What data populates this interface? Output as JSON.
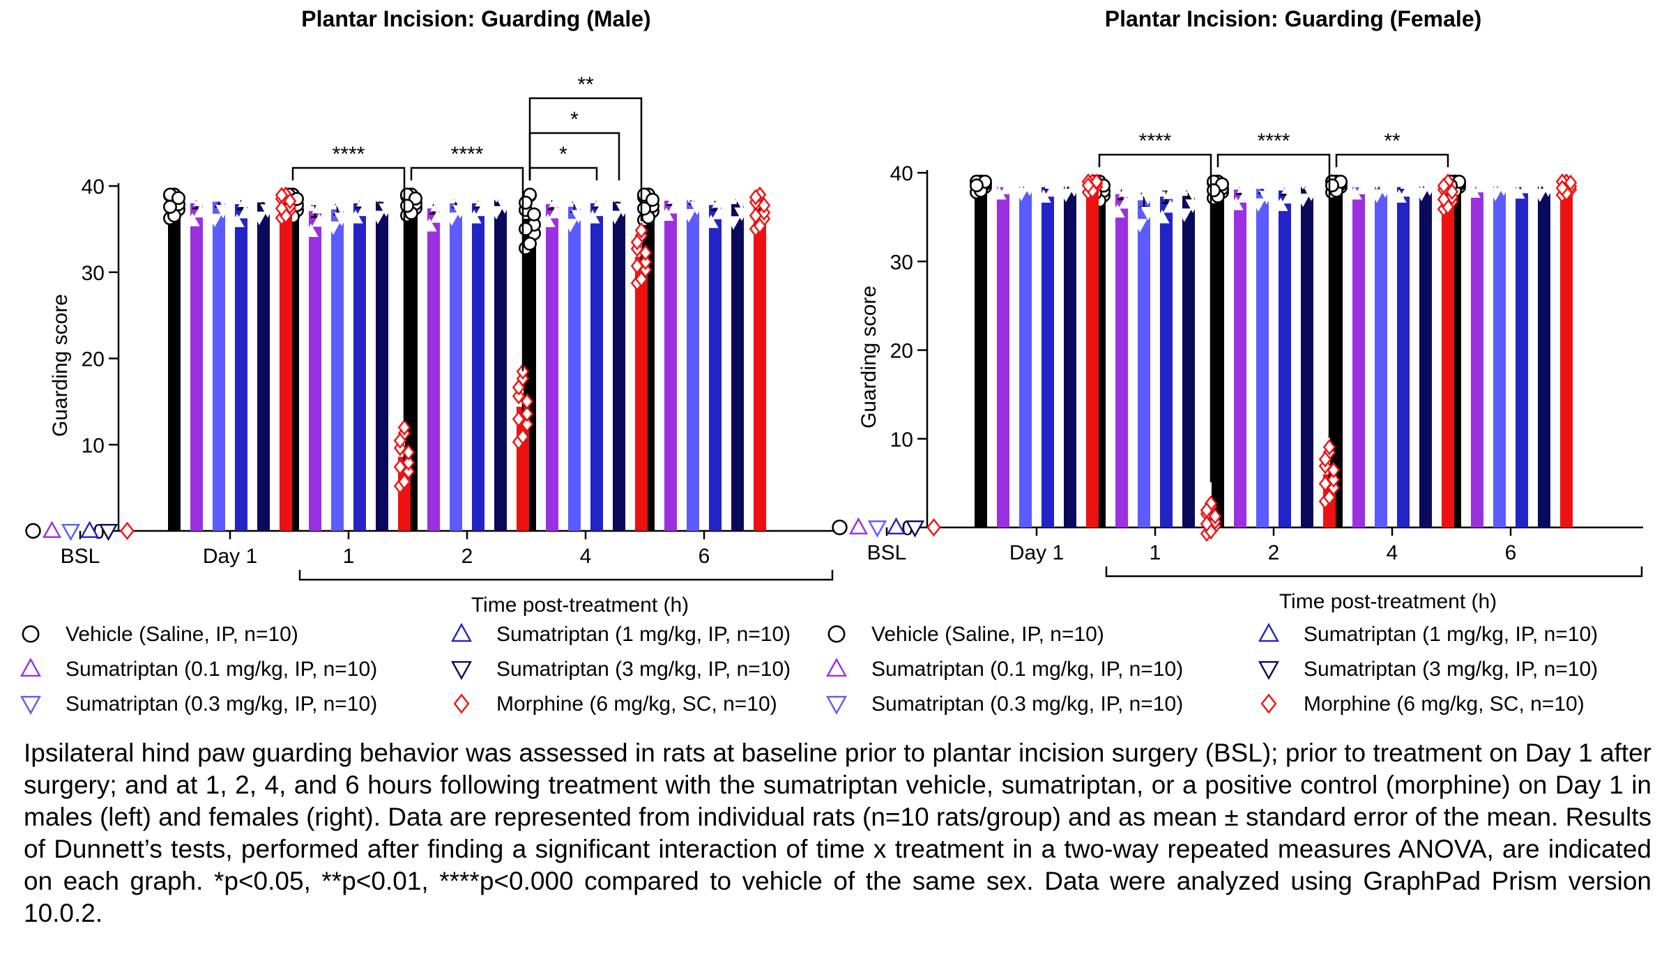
{
  "colors": {
    "vehicle": "#000000",
    "suma01": "#9B30E0",
    "suma03": "#5B5BFF",
    "suma1": "#2323C8",
    "suma3": "#0A0A5C",
    "morphine": "#EE1111"
  },
  "legend": [
    {
      "label": "Vehicle (Saline, IP, n=10)",
      "marker": "circle-icon",
      "color_key": "vehicle"
    },
    {
      "label": "Sumatriptan (0.1 mg/kg, IP, n=10)",
      "marker": "triangle-up-icon",
      "color_key": "suma01"
    },
    {
      "label": "Sumatriptan (0.3 mg/kg, IP, n=10)",
      "marker": "triangle-down-icon",
      "color_key": "suma03"
    },
    {
      "label": "Sumatriptan (1 mg/kg, IP, n=10)",
      "marker": "triangle-up-icon",
      "color_key": "suma1"
    },
    {
      "label": "Sumatriptan (3 mg/kg, IP, n=10)",
      "marker": "triangle-down-icon",
      "color_key": "suma3"
    },
    {
      "label": "Morphine (6 mg/kg, SC, n=10)",
      "marker": "diamond-icon",
      "color_key": "morphine"
    }
  ],
  "caption": "Ipsilateral hind paw guarding behavior was assessed in rats at baseline prior to plantar incision surgery (BSL); prior to treatment on Day 1 after surgery; and at 1, 2, 4, and 6 hours following treatment with the sumatriptan vehicle, sumatriptan, or a positive control (morphine) on Day 1 in males (left) and females (right). Data are represented from individual rats (n=10 rats/group) and as mean ± standard error of the mean. Results of Dunnett’s tests, performed after finding a significant interaction of time x treatment in a two-way repeated measures ANOVA, are indicated on each graph. *p<0.05, **p<0.01, ****p<0.000 compared to vehicle of the same sex. Data were analyzed using GraphPad Prism version 10.0.2.",
  "chart_data": [
    {
      "type": "bar",
      "title": "Plantar Incision: Guarding (Male)",
      "xlabel": "Time post-treatment (h)",
      "ylabel": "Guarding score",
      "ylim": [
        0,
        40
      ],
      "yticks": [
        0,
        10,
        20,
        30,
        40
      ],
      "categories": [
        "BSL",
        "Day 1",
        "1",
        "2",
        "4",
        "6"
      ],
      "series": [
        {
          "name": "Vehicle (Saline, IP, n=10)",
          "values": [
            0,
            38.3,
            38.2,
            38.3,
            36.2,
            38.1
          ],
          "sem": [
            0,
            0.6,
            0.6,
            0.5,
            1.0,
            0.6
          ]
        },
        {
          "name": "Sumatriptan (0.1 mg/kg, IP, n=10)",
          "values": [
            0,
            38.0,
            37.1,
            37.4,
            37.9,
            38.3
          ],
          "sem": [
            0,
            0.6,
            0.7,
            0.6,
            0.6,
            0.5
          ]
        },
        {
          "name": "Sumatriptan (0.3 mg/kg, IP, n=10)",
          "values": [
            0,
            38.2,
            37.3,
            38.0,
            37.6,
            38.4
          ],
          "sem": [
            0,
            0.6,
            0.6,
            0.5,
            0.6,
            0.5
          ]
        },
        {
          "name": "Sumatriptan (1 mg/kg, IP, n=10)",
          "values": [
            0,
            37.9,
            38.0,
            38.0,
            38.0,
            37.8
          ],
          "sem": [
            0,
            0.6,
            0.5,
            0.5,
            0.5,
            0.6
          ]
        },
        {
          "name": "Sumatriptan (3 mg/kg, IP, n=10)",
          "values": [
            0,
            38.1,
            38.2,
            38.4,
            38.2,
            37.9
          ],
          "sem": [
            0,
            0.5,
            0.5,
            0.4,
            0.5,
            0.6
          ]
        },
        {
          "name": "Morphine (6 mg/kg, SC, n=10)",
          "values": [
            0,
            38.0,
            8.6,
            14.4,
            31.8,
            37.4
          ],
          "sem": [
            0,
            0.5,
            1.0,
            1.2,
            0.9,
            0.7
          ]
        }
      ],
      "significance": [
        {
          "category": "1",
          "from": "Vehicle (Saline, IP, n=10)",
          "to": "Morphine (6 mg/kg, SC, n=10)",
          "label": "****"
        },
        {
          "category": "2",
          "from": "Vehicle (Saline, IP, n=10)",
          "to": "Morphine (6 mg/kg, SC, n=10)",
          "label": "****"
        },
        {
          "category": "4",
          "from": "Vehicle (Saline, IP, n=10)",
          "to": "Sumatriptan (1 mg/kg, IP, n=10)",
          "label": "*"
        },
        {
          "category": "4",
          "from": "Vehicle (Saline, IP, n=10)",
          "to": "Sumatriptan (3 mg/kg, IP, n=10)",
          "label": "*"
        },
        {
          "category": "4",
          "from": "Vehicle (Saline, IP, n=10)",
          "to": "Morphine (6 mg/kg, SC, n=10)",
          "label": "**"
        }
      ]
    },
    {
      "type": "bar",
      "title": "Plantar Incision: Guarding (Female)",
      "xlabel": "Time post-treatment (h)",
      "ylabel": "Guarding score",
      "ylim": [
        0,
        40
      ],
      "yticks": [
        0,
        10,
        20,
        30,
        40
      ],
      "categories": [
        "BSL",
        "Day 1",
        "1",
        "2",
        "4",
        "6"
      ],
      "series": [
        {
          "name": "Vehicle (Saline, IP, n=10)",
          "values": [
            0,
            39.0,
            38.3,
            38.5,
            39.0,
            39.0
          ],
          "sem": [
            0,
            0.3,
            0.5,
            0.4,
            0.2,
            0.2
          ]
        },
        {
          "name": "Sumatriptan (0.1 mg/kg, IP, n=10)",
          "values": [
            0,
            38.8,
            37.6,
            38.1,
            38.8,
            39.0
          ],
          "sem": [
            0,
            0.3,
            0.6,
            0.5,
            0.3,
            0.2
          ]
        },
        {
          "name": "Sumatriptan (0.3 mg/kg, IP, n=10)",
          "values": [
            0,
            38.9,
            36.9,
            38.2,
            38.7,
            38.9
          ],
          "sem": [
            0,
            0.3,
            0.8,
            0.5,
            0.3,
            0.3
          ]
        },
        {
          "name": "Sumatriptan (1 mg/kg, IP, n=10)",
          "values": [
            0,
            38.6,
            37.3,
            38.0,
            38.6,
            38.9
          ],
          "sem": [
            0,
            0.4,
            0.7,
            0.5,
            0.4,
            0.3
          ]
        },
        {
          "name": "Sumatriptan (3 mg/kg, IP, n=10)",
          "values": [
            0,
            38.8,
            37.4,
            38.4,
            38.9,
            38.8
          ],
          "sem": [
            0,
            0.3,
            0.6,
            0.4,
            0.3,
            0.3
          ]
        },
        {
          "name": "Morphine (6 mg/kg, SC, n=10)",
          "values": [
            0,
            39.0,
            1.0,
            6.0,
            37.6,
            38.7
          ],
          "sem": [
            0,
            0.2,
            0.5,
            0.9,
            0.5,
            0.3
          ]
        }
      ],
      "significance": [
        {
          "category": "1",
          "from": "Vehicle (Saline, IP, n=10)",
          "to": "Morphine (6 mg/kg, SC, n=10)",
          "label": "****"
        },
        {
          "category": "2",
          "from": "Vehicle (Saline, IP, n=10)",
          "to": "Morphine (6 mg/kg, SC, n=10)",
          "label": "****"
        },
        {
          "category": "4",
          "from": "Vehicle (Saline, IP, n=10)",
          "to": "Morphine (6 mg/kg, SC, n=10)",
          "label": "**"
        }
      ]
    }
  ]
}
